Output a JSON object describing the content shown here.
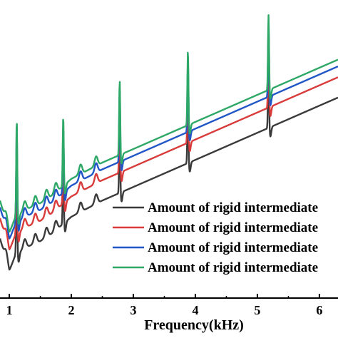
{
  "chart_data": {
    "type": "line",
    "title": "",
    "xlabel": "Frequency(kHz)",
    "ylabel": "",
    "xlim": [
      0.85,
      6.3
    ],
    "ylim": [
      -1.0,
      10.0
    ],
    "grid": false,
    "legend_position": "bottom-right",
    "x_ticks": [
      "1",
      "2",
      "3",
      "4",
      "5",
      "6"
    ],
    "y_ticks": [],
    "resonance_peaks_khz": [
      1.12,
      1.87,
      2.78,
      3.88,
      5.18
    ],
    "series": [
      {
        "name": "Amount of rigid intermediate",
        "color": "#3a3a3a",
        "offset": 0.0,
        "peak_heights": [
          3.0,
          2.2,
          2.4,
          2.4,
          2.4
        ],
        "x": [
          0.85,
          1.0,
          1.1,
          1.3,
          1.5,
          1.7,
          2.0,
          2.5,
          3.0,
          3.5,
          4.0,
          4.5,
          5.0,
          5.5,
          6.0,
          6.3
        ],
        "y": [
          1.2,
          0.0,
          0.6,
          0.9,
          1.1,
          1.4,
          2.0,
          2.6,
          3.1,
          3.6,
          4.1,
          4.6,
          5.1,
          5.6,
          6.1,
          6.4
        ]
      },
      {
        "name": "Amount of rigid intermediate",
        "color": "#d93b3b",
        "offset": 0.75,
        "peak_heights": [
          3.3,
          2.4,
          2.6,
          2.6,
          2.6
        ],
        "x": [
          0.85,
          1.0,
          1.1,
          1.3,
          1.5,
          1.7,
          2.0,
          2.5,
          3.0,
          3.5,
          4.0,
          4.5,
          5.0,
          5.5,
          6.0,
          6.3
        ],
        "y": [
          1.95,
          0.75,
          1.35,
          1.65,
          1.85,
          2.15,
          2.75,
          3.35,
          3.85,
          4.35,
          4.85,
          5.35,
          5.85,
          6.35,
          6.85,
          7.15
        ]
      },
      {
        "name": "Amount of rigid intermediate",
        "color": "#2156c7",
        "offset": 1.15,
        "peak_heights": [
          3.5,
          2.5,
          2.7,
          2.7,
          2.7
        ],
        "x": [
          0.85,
          1.0,
          1.1,
          1.3,
          1.5,
          1.7,
          2.0,
          2.5,
          3.0,
          3.5,
          4.0,
          4.5,
          5.0,
          5.5,
          6.0,
          6.3
        ],
        "y": [
          2.35,
          1.15,
          1.75,
          2.05,
          2.25,
          2.55,
          3.15,
          3.75,
          4.25,
          4.75,
          5.25,
          5.75,
          6.25,
          6.75,
          7.25,
          7.55
        ]
      },
      {
        "name": "Amount of rigid intermediate",
        "color": "#2ea866",
        "offset": 1.4,
        "peak_heights": [
          3.6,
          2.6,
          2.8,
          2.8,
          2.8
        ],
        "x": [
          0.85,
          1.0,
          1.1,
          1.3,
          1.5,
          1.7,
          2.0,
          2.5,
          3.0,
          3.5,
          4.0,
          4.5,
          5.0,
          5.5,
          6.0,
          6.3
        ],
        "y": [
          2.6,
          1.4,
          2.0,
          2.3,
          2.5,
          2.8,
          3.4,
          4.0,
          4.5,
          5.0,
          5.5,
          6.0,
          6.5,
          7.0,
          7.5,
          7.8
        ]
      }
    ]
  }
}
